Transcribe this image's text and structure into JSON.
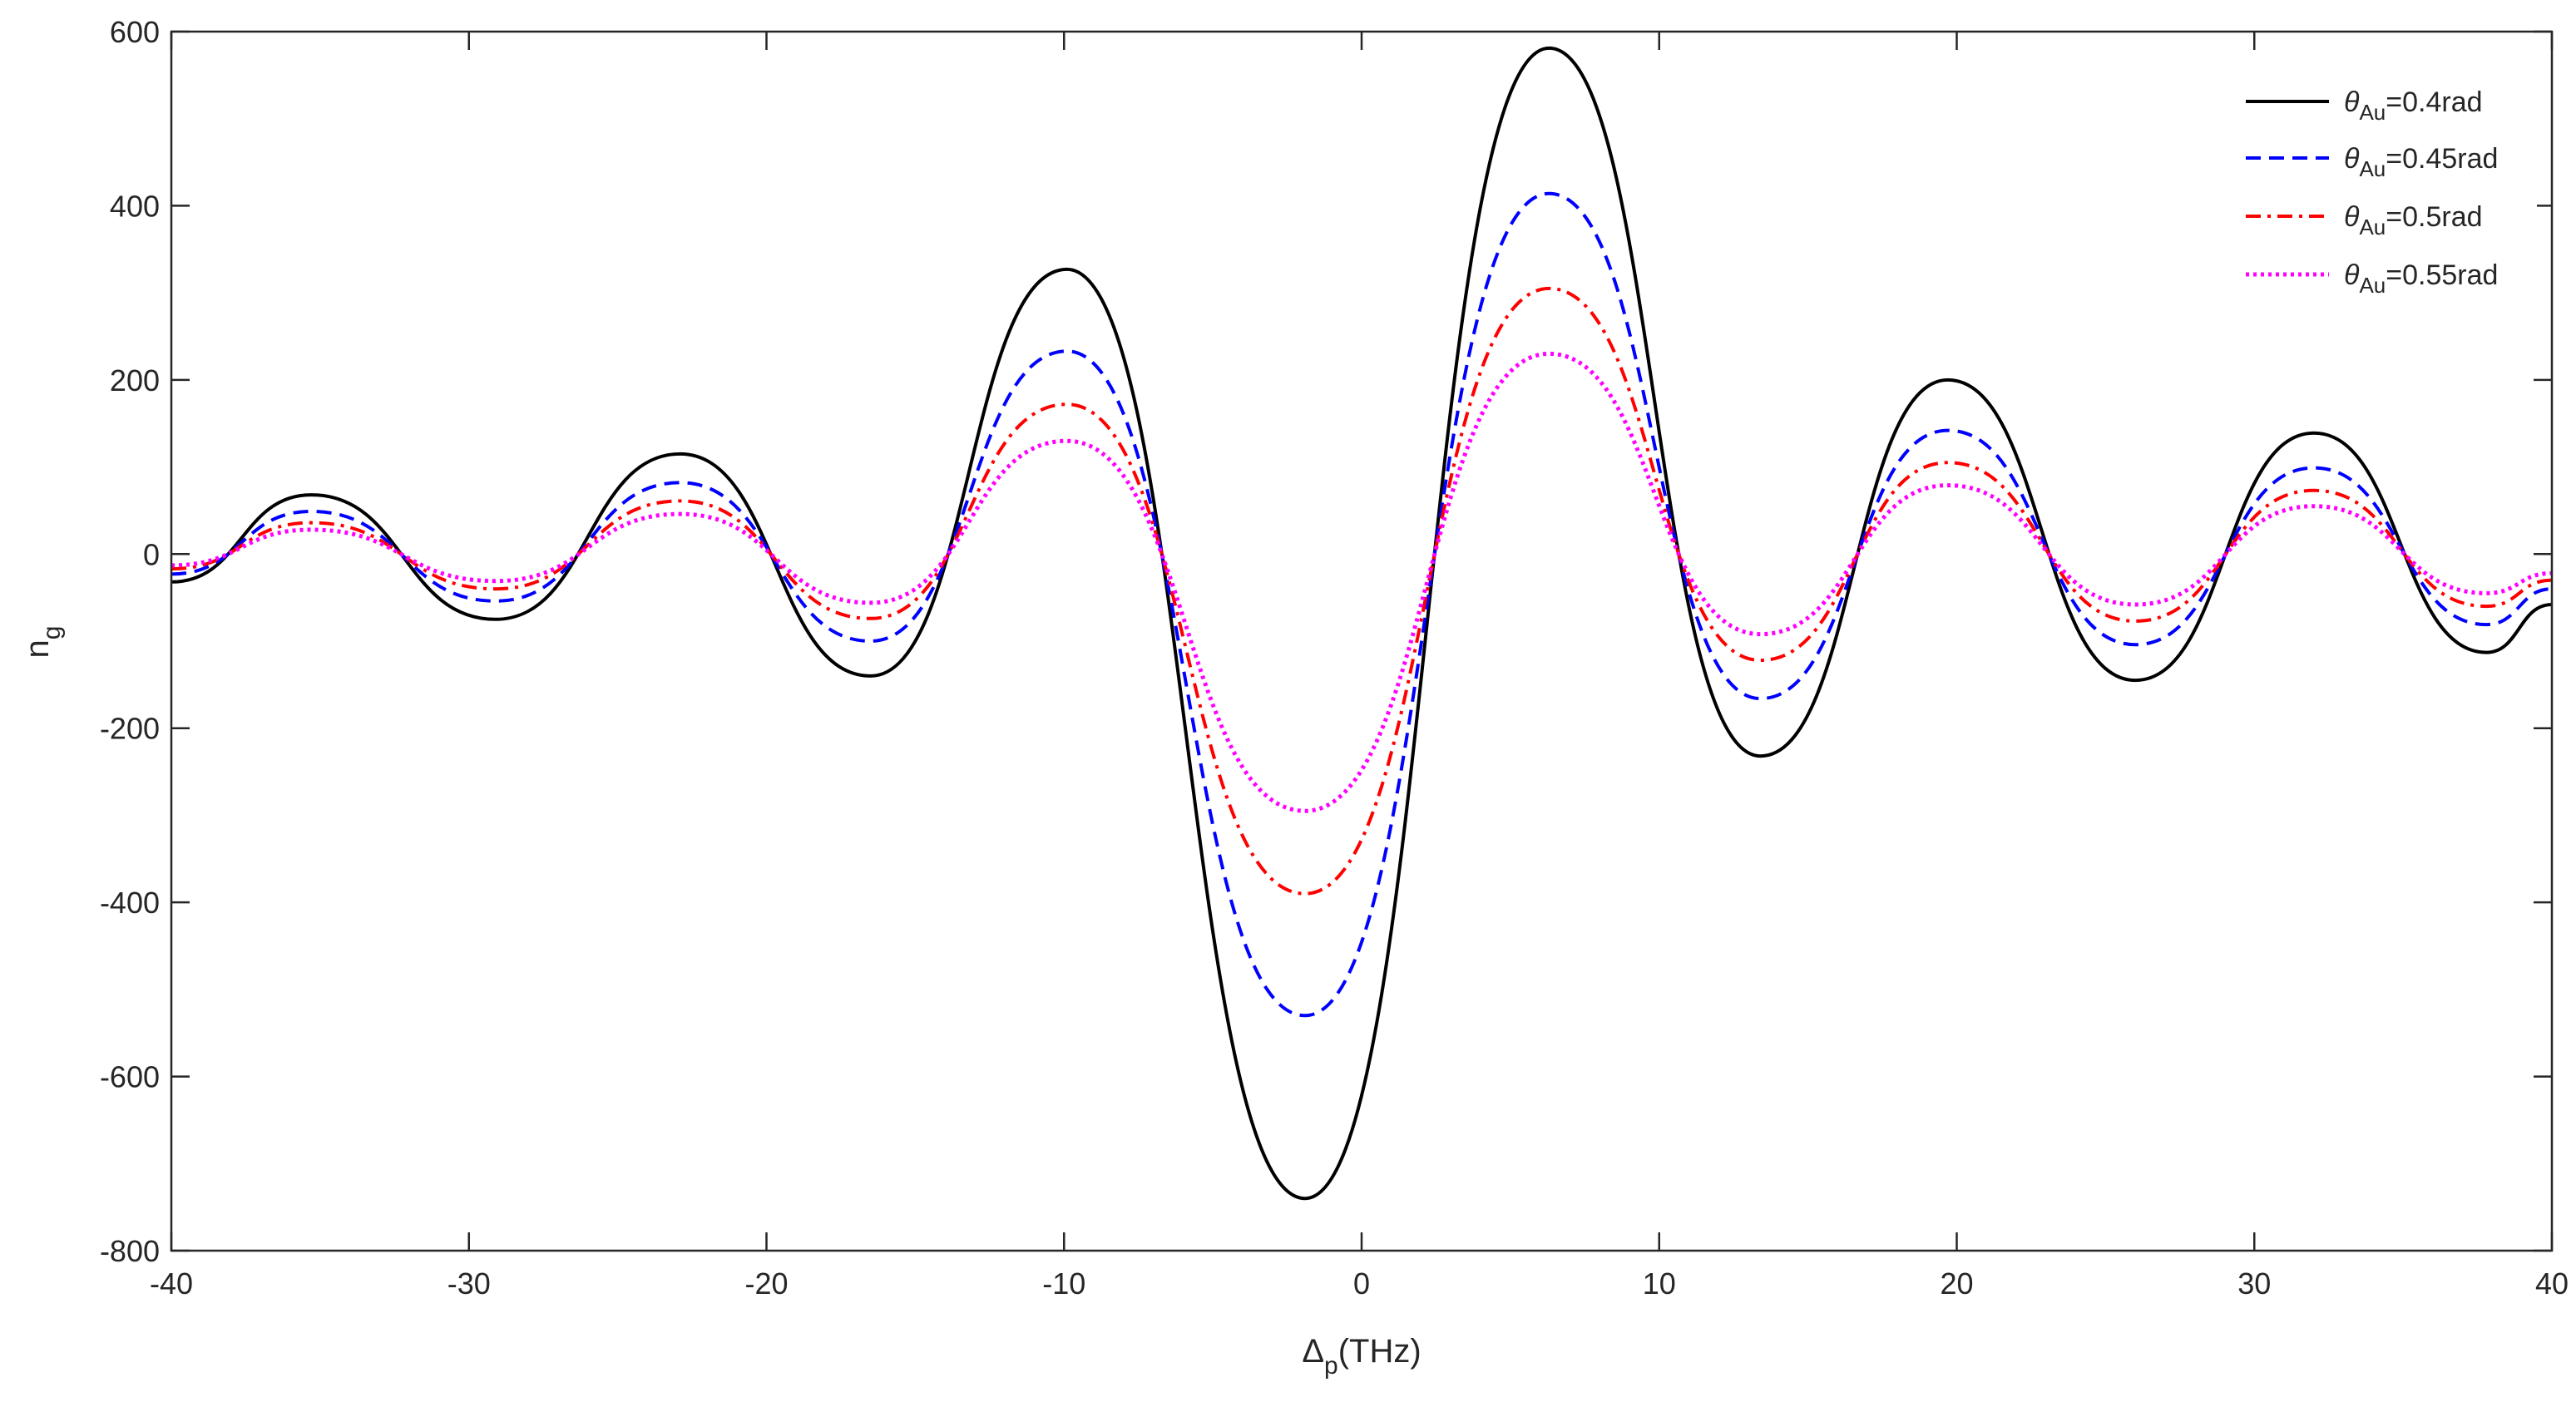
{
  "chart_data": {
    "type": "line",
    "title": "",
    "xlabel": {
      "main": "Δ",
      "sub": "p",
      "unit": "(THz)"
    },
    "ylabel": {
      "main": "n",
      "sub": "g"
    },
    "xlim": [
      -40,
      40
    ],
    "ylim": [
      -800,
      600
    ],
    "xticks": [
      -40,
      -30,
      -20,
      -10,
      0,
      10,
      20,
      30,
      40
    ],
    "xtick_labels": [
      "-40",
      "-30",
      "-20",
      "-10",
      "0",
      "10",
      "20",
      "30",
      "40"
    ],
    "yticks": [
      -800,
      -600,
      -400,
      -200,
      0,
      200,
      400,
      600
    ],
    "ytick_labels": [
      "-800",
      "-600",
      "-400",
      "-200",
      "0",
      "200",
      "400",
      "600"
    ],
    "grid": false,
    "legend_position": "top-right",
    "series": [
      {
        "name": "θAu=0.4rad",
        "label_main": "θ",
        "label_sub": "Au",
        "label_rest": "=0.4rad",
        "color": "#000000",
        "dash": "solid",
        "x": [
          -40,
          -35.3,
          -29.1,
          -22.9,
          -16.5,
          -9.9,
          -1.9,
          6.3,
          13.4,
          19.7,
          26.0,
          32.0,
          37.8,
          40
        ],
        "y": [
          -32,
          68,
          -75,
          115,
          -140,
          327,
          -740,
          581,
          -232,
          200,
          -145,
          139,
          -113,
          -58
        ]
      },
      {
        "name": "θAu=0.45rad",
        "label_main": "θ",
        "label_sub": "Au",
        "label_rest": "=0.45rad",
        "color": "#0000ff",
        "dash": "dashed",
        "x": [
          -40,
          -35.3,
          -29.1,
          -22.9,
          -16.5,
          -9.9,
          -1.9,
          6.3,
          13.4,
          19.7,
          26.0,
          32.0,
          37.8,
          40
        ],
        "y": [
          -23,
          49,
          -54,
          82,
          -100,
          233,
          -530,
          414,
          -166,
          142,
          -104,
          99,
          -81,
          -40
        ]
      },
      {
        "name": "θAu=0.5rad",
        "label_main": "θ",
        "label_sub": "Au",
        "label_rest": "=0.5rad",
        "color": "#ff0000",
        "dash": "dashdot",
        "x": [
          -40,
          -35.3,
          -29.1,
          -22.9,
          -16.5,
          -9.9,
          -1.9,
          6.3,
          13.4,
          19.7,
          26.0,
          32.0,
          37.8,
          40
        ],
        "y": [
          -17,
          36,
          -40,
          61,
          -74,
          172,
          -390,
          305,
          -122,
          105,
          -77,
          73,
          -60,
          -30
        ]
      },
      {
        "name": "θAu=0.55rad",
        "label_main": "θ",
        "label_sub": "Au",
        "label_rest": "=0.55rad",
        "color": "#ff00ff",
        "dash": "dotted",
        "x": [
          -40,
          -35.3,
          -29.1,
          -22.9,
          -16.5,
          -9.9,
          -1.9,
          6.3,
          13.4,
          19.7,
          26.0,
          32.0,
          37.8,
          40
        ],
        "y": [
          -13,
          28,
          -31,
          46,
          -56,
          130,
          -295,
          230,
          -92,
          79,
          -58,
          55,
          -45,
          -22
        ]
      }
    ]
  }
}
